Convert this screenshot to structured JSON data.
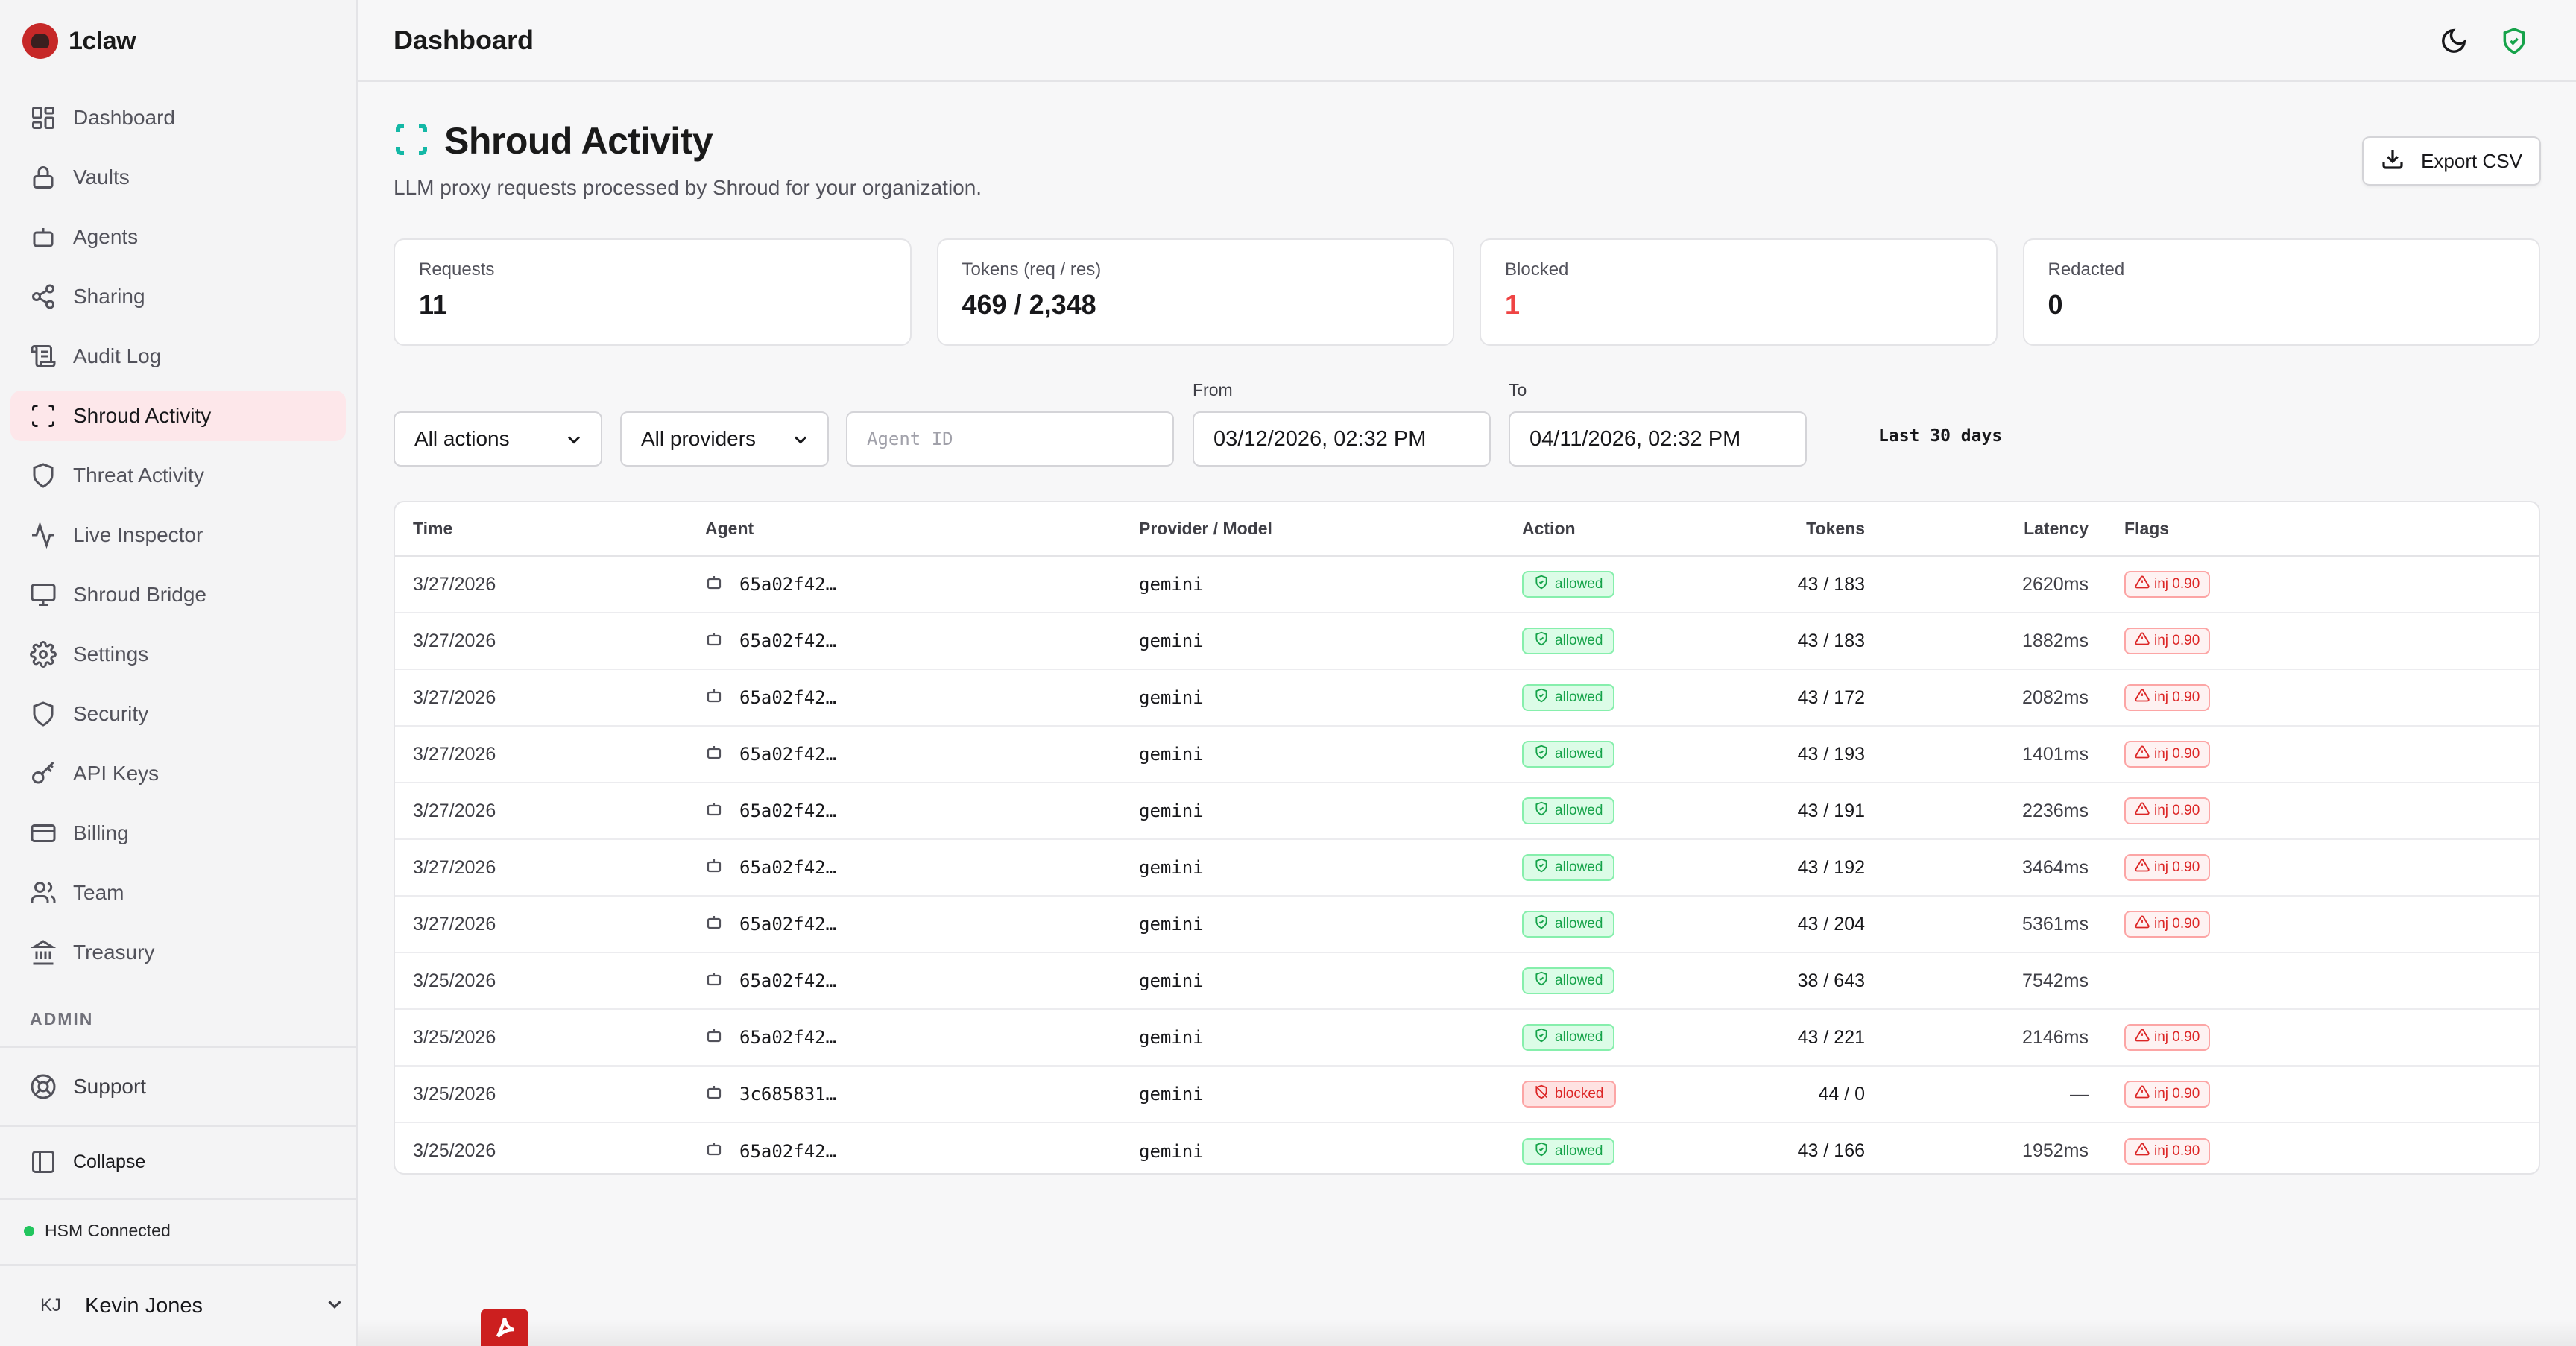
{
  "brand": {
    "name": "1claw"
  },
  "sidebar": {
    "items": [
      {
        "label": "Dashboard",
        "icon": "layout-grid-icon"
      },
      {
        "label": "Vaults",
        "icon": "lock-icon"
      },
      {
        "label": "Agents",
        "icon": "bot-icon"
      },
      {
        "label": "Sharing",
        "icon": "share-icon"
      },
      {
        "label": "Audit Log",
        "icon": "scroll-icon"
      },
      {
        "label": "Shroud Activity",
        "icon": "scan-icon",
        "active": true
      },
      {
        "label": "Threat Activity",
        "icon": "shield-icon"
      },
      {
        "label": "Live Inspector",
        "icon": "activity-icon"
      },
      {
        "label": "Shroud Bridge",
        "icon": "monitor-icon"
      },
      {
        "label": "Settings",
        "icon": "gear-icon"
      },
      {
        "label": "Security",
        "icon": "shield-icon"
      },
      {
        "label": "API Keys",
        "icon": "key-icon"
      },
      {
        "label": "Billing",
        "icon": "credit-card-icon"
      },
      {
        "label": "Team",
        "icon": "users-icon"
      },
      {
        "label": "Treasury",
        "icon": "landmark-icon"
      }
    ],
    "admin_label": "ADMIN",
    "support_label": "Support",
    "collapse_label": "Collapse",
    "hsm_status": "HSM Connected",
    "user": {
      "initials": "KJ",
      "name": "Kevin Jones"
    }
  },
  "topbar": {
    "title": "Dashboard"
  },
  "page": {
    "title": "Shroud Activity",
    "subtitle": "LLM proxy requests processed by Shroud for your organization.",
    "export_label": "Export CSV"
  },
  "stats": [
    {
      "label": "Requests",
      "value": "11"
    },
    {
      "label": "Tokens (req / res)",
      "value": "469 / 2,348"
    },
    {
      "label": "Blocked",
      "value": "1"
    },
    {
      "label": "Redacted",
      "value": "0"
    }
  ],
  "filters": {
    "action": "All actions",
    "provider": "All providers",
    "agent_placeholder": "Agent ID",
    "from_label": "From",
    "from_value": "03/12/2026, 02:32 PM",
    "to_label": "To",
    "to_value": "04/11/2026, 02:32 PM",
    "range": "Last 30 days"
  },
  "table": {
    "headers": {
      "time": "Time",
      "agent": "Agent",
      "provider": "Provider / Model",
      "action": "Action",
      "tokens": "Tokens",
      "latency": "Latency",
      "flags": "Flags"
    },
    "rows": [
      {
        "time": "3/27/2026",
        "agent": "65a02f42…",
        "provider": "gemini",
        "action": "allowed",
        "tokens": "43 / 183",
        "latency": "2620ms",
        "flag": "inj 0.90"
      },
      {
        "time": "3/27/2026",
        "agent": "65a02f42…",
        "provider": "gemini",
        "action": "allowed",
        "tokens": "43 / 183",
        "latency": "1882ms",
        "flag": "inj 0.90"
      },
      {
        "time": "3/27/2026",
        "agent": "65a02f42…",
        "provider": "gemini",
        "action": "allowed",
        "tokens": "43 / 172",
        "latency": "2082ms",
        "flag": "inj 0.90"
      },
      {
        "time": "3/27/2026",
        "agent": "65a02f42…",
        "provider": "gemini",
        "action": "allowed",
        "tokens": "43 / 193",
        "latency": "1401ms",
        "flag": "inj 0.90"
      },
      {
        "time": "3/27/2026",
        "agent": "65a02f42…",
        "provider": "gemini",
        "action": "allowed",
        "tokens": "43 / 191",
        "latency": "2236ms",
        "flag": "inj 0.90"
      },
      {
        "time": "3/27/2026",
        "agent": "65a02f42…",
        "provider": "gemini",
        "action": "allowed",
        "tokens": "43 / 192",
        "latency": "3464ms",
        "flag": "inj 0.90"
      },
      {
        "time": "3/27/2026",
        "agent": "65a02f42…",
        "provider": "gemini",
        "action": "allowed",
        "tokens": "43 / 204",
        "latency": "5361ms",
        "flag": "inj 0.90"
      },
      {
        "time": "3/25/2026",
        "agent": "65a02f42…",
        "provider": "gemini",
        "action": "allowed",
        "tokens": "38 / 643",
        "latency": "7542ms",
        "flag": ""
      },
      {
        "time": "3/25/2026",
        "agent": "65a02f42…",
        "provider": "gemini",
        "action": "allowed",
        "tokens": "43 / 221",
        "latency": "2146ms",
        "flag": "inj 0.90"
      },
      {
        "time": "3/25/2026",
        "agent": "3c685831…",
        "provider": "gemini",
        "action": "blocked",
        "tokens": "44 / 0",
        "latency": "—",
        "flag": "inj 0.90"
      },
      {
        "time": "3/25/2026",
        "agent": "65a02f42…",
        "provider": "gemini",
        "action": "allowed",
        "tokens": "43 / 166",
        "latency": "1952ms",
        "flag": "inj 0.90"
      }
    ]
  },
  "colors": {
    "accent_active_bg": "#fde7ea",
    "allowed": "#16a34a",
    "blocked": "#dc2626",
    "teal": "#14b8a6",
    "blocked_count": "#ef4444"
  }
}
